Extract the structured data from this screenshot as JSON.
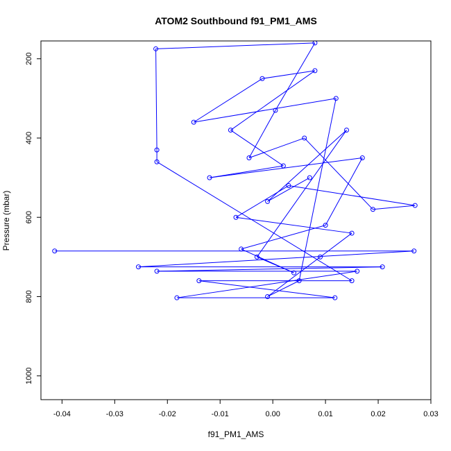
{
  "chart_data": {
    "type": "scatter",
    "title": "ATOM2 Southbound f91_PM1_AMS",
    "xlabel": "f91_PM1_AMS",
    "ylabel": "Pressure (mbar)",
    "xlim": [
      -0.044,
      0.03
    ],
    "ylim": [
      1060,
      155
    ],
    "y_reversed": true,
    "x_ticks": [
      -0.04,
      -0.03,
      -0.02,
      -0.01,
      0.0,
      0.01,
      0.02,
      0.03
    ],
    "x_tick_labels": [
      "-0.04",
      "-0.03",
      "-0.02",
      "-0.01",
      "0.00",
      "0.01",
      "0.02",
      "0.03"
    ],
    "y_ticks": [
      200,
      400,
      600,
      800,
      1000
    ],
    "y_tick_labels": [
      "200",
      "400",
      "600",
      "800",
      "1000"
    ],
    "series_color": "#0000ff",
    "marker": "open-circle",
    "connect_points": true,
    "grid": false,
    "series": [
      {
        "points": [
          {
            "x": -0.0414,
            "y": 685
          },
          {
            "x": 0.0268,
            "y": 685
          },
          {
            "x": -0.0255,
            "y": 725
          },
          {
            "x": 0.0208,
            "y": 725
          },
          {
            "x": -0.022,
            "y": 736
          },
          {
            "x": 0.016,
            "y": 736
          },
          {
            "x": -0.0182,
            "y": 803
          },
          {
            "x": 0.0118,
            "y": 803
          },
          {
            "x": -0.014,
            "y": 760
          },
          {
            "x": 0.015,
            "y": 760
          },
          {
            "x": -0.022,
            "y": 460
          },
          {
            "x": -0.022,
            "y": 430
          },
          {
            "x": -0.0222,
            "y": 175
          },
          {
            "x": 0.008,
            "y": 160
          },
          {
            "x": 0.0005,
            "y": 330
          },
          {
            "x": -0.0045,
            "y": 450
          },
          {
            "x": 0.006,
            "y": 400
          },
          {
            "x": 0.019,
            "y": 580
          },
          {
            "x": 0.027,
            "y": 570
          },
          {
            "x": 0.003,
            "y": 520
          },
          {
            "x": -0.007,
            "y": 600
          },
          {
            "x": 0.015,
            "y": 640
          },
          {
            "x": 0.009,
            "y": 700
          },
          {
            "x": -0.001,
            "y": 800
          },
          {
            "x": 0.005,
            "y": 760
          },
          {
            "x": 0.012,
            "y": 300
          },
          {
            "x": -0.015,
            "y": 360
          },
          {
            "x": -0.002,
            "y": 250
          },
          {
            "x": 0.008,
            "y": 230
          },
          {
            "x": -0.008,
            "y": 380
          },
          {
            "x": 0.002,
            "y": 470
          },
          {
            "x": -0.012,
            "y": 500
          },
          {
            "x": 0.017,
            "y": 450
          },
          {
            "x": 0.01,
            "y": 620
          },
          {
            "x": -0.006,
            "y": 680
          },
          {
            "x": 0.004,
            "y": 740
          },
          {
            "x": -0.003,
            "y": 700
          },
          {
            "x": 0.014,
            "y": 380
          },
          {
            "x": -0.001,
            "y": 560
          },
          {
            "x": 0.007,
            "y": 500
          }
        ]
      }
    ]
  }
}
